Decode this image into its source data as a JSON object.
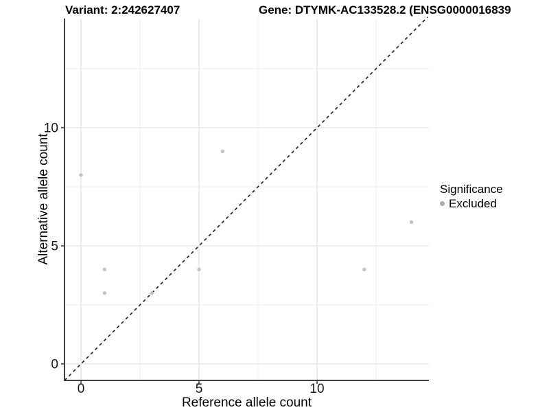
{
  "chart_data": {
    "type": "scatter",
    "title_left": "Variant: 2:242627407",
    "title_right": "Gene: DTYMK-AC133528.2 (ENSG0000016839",
    "xlabel": "Reference allele count",
    "ylabel": "Alternative allele count",
    "xlim": [
      -0.7,
      14.7
    ],
    "ylim": [
      -0.7,
      14.7
    ],
    "x_ticks": [
      0,
      5,
      10
    ],
    "y_ticks": [
      0,
      5,
      10
    ],
    "x_minor_ticks": [
      2.5,
      7.5,
      12.5
    ],
    "y_minor_ticks": [
      2.5,
      7.5,
      12.5
    ],
    "grid": "major+minor",
    "reference_line": {
      "equation": "y = x",
      "style": "dashed",
      "color": "#1a1a1a"
    },
    "series": [
      {
        "name": "Excluded",
        "color": "#c2c2c2",
        "points": [
          [
            0,
            8
          ],
          [
            1,
            3
          ],
          [
            1,
            4
          ],
          [
            3,
            3
          ],
          [
            5,
            4
          ],
          [
            6,
            9
          ],
          [
            12,
            4
          ],
          [
            14,
            6
          ]
        ]
      }
    ],
    "legend": {
      "title": "Significance",
      "position": "right",
      "items": [
        {
          "label": "Excluded",
          "marker": "circle",
          "color": "#a9a9a9"
        }
      ]
    },
    "colors": {
      "grid_major": "#e3e3e3",
      "grid_minor": "#f0f0f0",
      "axis": "#404040",
      "tick_label": "#1a1a1a",
      "point": "#c2c2c2"
    }
  }
}
